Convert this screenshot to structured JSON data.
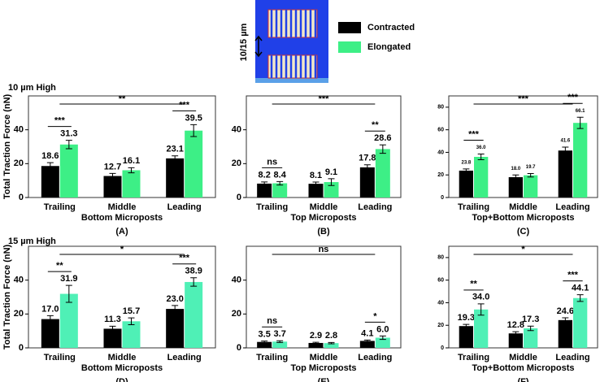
{
  "schematic_label": "10/15 µm",
  "row_labels": [
    "10 µm High",
    "15 µm High"
  ],
  "chart_data": [
    {
      "type": "bar",
      "panel": "(A)",
      "xlabel": "Bottom Microposts",
      "ylabel": "Total Traction Force (nN)",
      "categories": [
        "Trailing",
        "Middle",
        "Leading"
      ],
      "ylim": [
        0,
        60
      ],
      "yticks": [
        0,
        20,
        40
      ],
      "series": [
        {
          "name": "Contracted",
          "color": "#000000",
          "values": [
            18.6,
            12.7,
            23.1
          ],
          "value_labels": [
            "18.6",
            "12.7",
            "23.1"
          ],
          "errors": [
            2,
            1.5,
            1.5
          ]
        },
        {
          "name": "Elongated",
          "color": "#3def86",
          "values": [
            31.3,
            16.1,
            39.5
          ],
          "value_labels": [
            "31.3",
            "16.1",
            "39.5"
          ],
          "errors": [
            2.5,
            1.5,
            3.5
          ]
        }
      ],
      "significance": [
        "***",
        null,
        "***"
      ],
      "overall_significance": "**"
    },
    {
      "type": "bar",
      "panel": "(B)",
      "xlabel": "Top Microposts",
      "categories": [
        "Trailing",
        "Middle",
        "Leading"
      ],
      "ylim": [
        0,
        60
      ],
      "yticks": [
        0,
        20,
        40
      ],
      "series": [
        {
          "color": "#000000",
          "values": [
            8.2,
            8.1,
            17.8
          ],
          "value_labels": [
            "8.2",
            "8.1",
            "17.8"
          ],
          "errors": [
            1,
            1,
            1.5
          ]
        },
        {
          "color": "#3def86",
          "values": [
            8.4,
            9.1,
            28.6
          ],
          "value_labels": [
            "8.4",
            "9.1",
            "28.6"
          ],
          "errors": [
            1,
            2,
            2.5
          ]
        }
      ],
      "significance": [
        "ns",
        null,
        "**"
      ],
      "overall_significance": "***"
    },
    {
      "type": "bar",
      "panel": "(C)",
      "xlabel": "Top+Bottom Microposts",
      "categories": [
        "Trailing",
        "Middle",
        "Leading"
      ],
      "ylim": [
        0,
        90
      ],
      "yticks": [
        0,
        20,
        40,
        60,
        80
      ],
      "series": [
        {
          "color": "#000000",
          "values": [
            23.8,
            18.0,
            41.6
          ],
          "value_labels": [
            "23.8",
            "18.0",
            "41.6"
          ],
          "errors": [
            1.5,
            2,
            3
          ]
        },
        {
          "color": "#3def86",
          "values": [
            36.0,
            19.7,
            66.1
          ],
          "value_labels": [
            "36.0",
            "19.7",
            "66.1"
          ],
          "errors": [
            2.5,
            1.5,
            5
          ]
        }
      ],
      "significance": [
        "***",
        null,
        "***"
      ],
      "overall_significance": "***"
    },
    {
      "type": "bar",
      "panel": "(D)",
      "xlabel": "Bottom Microposts",
      "ylabel": "Total Traction Force (nN)",
      "categories": [
        "Trailing",
        "Middle",
        "Leading"
      ],
      "ylim": [
        0,
        60
      ],
      "yticks": [
        0,
        20,
        40
      ],
      "series": [
        {
          "color": "#000000",
          "values": [
            17.0,
            11.3,
            23.0
          ],
          "value_labels": [
            "17.0",
            "11.3",
            "23.0"
          ],
          "errors": [
            2,
            1.5,
            2
          ]
        },
        {
          "color": "#4ff0b6",
          "values": [
            31.9,
            15.7,
            38.9
          ],
          "value_labels": [
            "31.9",
            "15.7",
            "38.9"
          ],
          "errors": [
            5,
            2,
            2.5
          ]
        }
      ],
      "significance": [
        "**",
        null,
        "***"
      ],
      "overall_significance": "*"
    },
    {
      "type": "bar",
      "panel": "(E)",
      "xlabel": "Top Microposts",
      "categories": [
        "Trailing",
        "Middle",
        "Leading"
      ],
      "ylim": [
        0,
        60
      ],
      "yticks": [
        0,
        20,
        40
      ],
      "series": [
        {
          "color": "#000000",
          "values": [
            3.5,
            2.9,
            4.1
          ],
          "value_labels": [
            "3.5",
            "2.9",
            "4.1"
          ],
          "errors": [
            0.5,
            0.4,
            0.5
          ]
        },
        {
          "color": "#4ff0b6",
          "values": [
            3.7,
            2.8,
            6.0
          ],
          "value_labels": [
            "3.7",
            "2.8",
            "6.0"
          ],
          "errors": [
            0.5,
            0.4,
            1
          ]
        }
      ],
      "significance": [
        "ns",
        null,
        "*"
      ],
      "overall_significance": "ns"
    },
    {
      "type": "bar",
      "panel": "(F)",
      "xlabel": "Top+Bottom Microposts",
      "categories": [
        "Trailing",
        "Middle",
        "Leading"
      ],
      "ylim": [
        0,
        90
      ],
      "yticks": [
        0,
        20,
        40,
        60,
        80
      ],
      "series": [
        {
          "color": "#000000",
          "values": [
            19.3,
            12.8,
            24.6
          ],
          "value_labels": [
            "19.3",
            "12.8",
            "24.6"
          ],
          "errors": [
            1.5,
            1.5,
            2
          ]
        },
        {
          "color": "#4ff0b6",
          "values": [
            34.0,
            17.3,
            44.1
          ],
          "value_labels": [
            "34.0",
            "17.3",
            "44.1"
          ],
          "errors": [
            5,
            2,
            3
          ]
        }
      ],
      "significance": [
        "**",
        null,
        "***"
      ],
      "overall_significance": "*"
    }
  ]
}
